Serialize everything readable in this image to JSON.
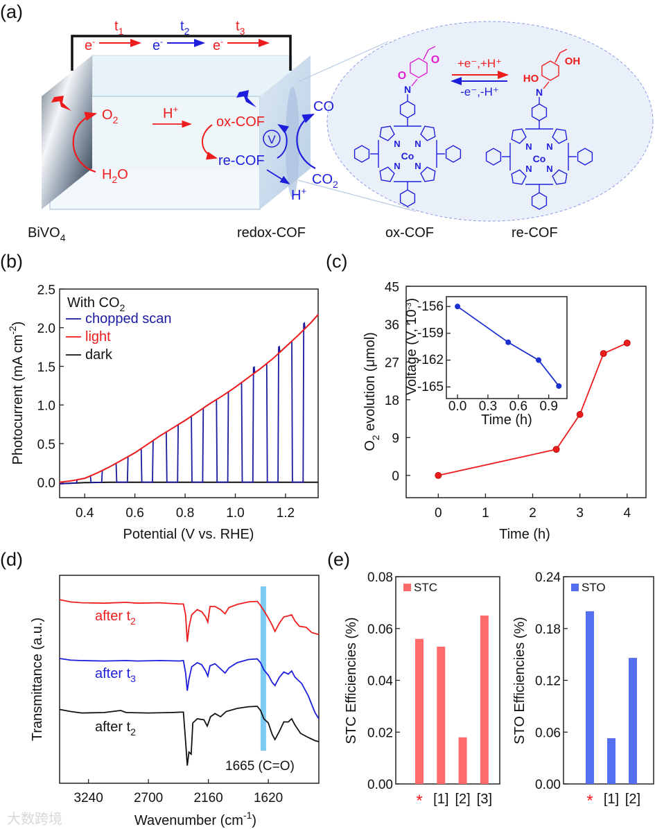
{
  "figure": {
    "panel_labels": {
      "a": "(a)",
      "b": "(b)",
      "c": "(c)",
      "d": "(d)",
      "e": "(e)"
    },
    "watermark": "大数跨境",
    "schematic": {
      "times": [
        {
          "base": "t",
          "sub": "1"
        },
        {
          "base": "t",
          "sub": "2"
        },
        {
          "base": "t",
          "sub": "3"
        }
      ],
      "electron": {
        "base": "e",
        "sup": "-"
      },
      "o2": {
        "base": "O",
        "sub": "2"
      },
      "h2o": {
        "base": "H",
        "sub": "2",
        "tail": "O"
      },
      "proton": {
        "base": "H",
        "sup": "+"
      },
      "ox_cof": "ox-COF",
      "re_cof": "re-COF",
      "voltage_symbol": "V",
      "co": "CO",
      "co2": {
        "base": "CO",
        "sub": "2"
      },
      "bivo4": {
        "base": "BiVO",
        "sub": "4"
      },
      "redox_cof": "redox-COF",
      "forward": "+e⁻,+H⁺",
      "backward": "-e⁻,-H⁺",
      "atoms": {
        "N": "N",
        "Co": "Co",
        "O": "O",
        "HO": "HO",
        "OH": "OH"
      },
      "structure_labels": {
        "ox": "ox-COF",
        "re": "re-COF"
      },
      "colors": {
        "red": "#ee1c1c",
        "blue": "#1d1ddc",
        "magenta": "#e01ed0"
      }
    }
  },
  "chart_data": [
    {
      "id": "b",
      "type": "line",
      "title": "",
      "xlabel": "Potential (V vs. RHE)",
      "ylabel": {
        "base": "Photocurrent (mA cm",
        "sup": "-2",
        "tail": ")"
      },
      "xlim": [
        0.3,
        1.33
      ],
      "ylim": [
        -0.2,
        2.5
      ],
      "xticks": [
        0.4,
        0.6,
        0.8,
        1.0,
        1.2
      ],
      "xtick_labels": [
        "0.4",
        "0.6",
        "0.8",
        "1.0",
        "1.2"
      ],
      "yticks": [
        0.0,
        0.5,
        1.0,
        1.5,
        2.0,
        2.5
      ],
      "ytick_labels": [
        "0.0",
        "0.5",
        "1.0",
        "1.5",
        "2.0",
        "2.5"
      ],
      "legend_title": {
        "base": "With CO",
        "sub": "2"
      },
      "legend_position": "top-left",
      "series": [
        {
          "name": "chopped scan",
          "color": "#1a1aa0",
          "on_windows": [
            [
              0.37,
              0.425
            ],
            [
              0.47,
              0.527
            ],
            [
              0.57,
              0.627
            ],
            [
              0.67,
              0.727
            ],
            [
              0.77,
              0.827
            ],
            [
              0.87,
              0.927
            ],
            [
              0.97,
              1.027
            ],
            [
              1.07,
              1.127
            ],
            [
              1.17,
              1.227
            ],
            [
              1.27,
              1.33
            ]
          ]
        },
        {
          "name": "light",
          "color": "#ee1c1c",
          "points": [
            [
              0.3,
              0.0
            ],
            [
              0.35,
              0.02
            ],
            [
              0.4,
              0.05
            ],
            [
              0.45,
              0.12
            ],
            [
              0.5,
              0.2
            ],
            [
              0.55,
              0.29
            ],
            [
              0.6,
              0.38
            ],
            [
              0.65,
              0.49
            ],
            [
              0.7,
              0.6
            ],
            [
              0.75,
              0.7
            ],
            [
              0.8,
              0.8
            ],
            [
              0.85,
              0.91
            ],
            [
              0.9,
              1.02
            ],
            [
              0.95,
              1.12
            ],
            [
              1.0,
              1.23
            ],
            [
              1.05,
              1.35
            ],
            [
              1.1,
              1.47
            ],
            [
              1.15,
              1.6
            ],
            [
              1.2,
              1.75
            ],
            [
              1.25,
              1.9
            ],
            [
              1.3,
              2.06
            ],
            [
              1.33,
              2.17
            ]
          ]
        },
        {
          "name": "dark",
          "color": "#111111",
          "points": [
            [
              0.3,
              -0.02
            ],
            [
              0.4,
              -0.005
            ],
            [
              0.5,
              0.0
            ],
            [
              1.33,
              0.0
            ]
          ]
        }
      ]
    },
    {
      "id": "c",
      "type": "line",
      "xlabel": "Time (h)",
      "ylabel": {
        "base": "O",
        "sub": "2",
        "tail": " evolution (μmol)"
      },
      "xlim": [
        -0.68,
        4.4
      ],
      "ylim": [
        -5.3,
        45
      ],
      "xticks": [
        0,
        1,
        2,
        3,
        4
      ],
      "xtick_labels": [
        "0",
        "1",
        "2",
        "3",
        "4"
      ],
      "yticks": [
        0,
        9,
        18,
        27,
        36,
        45
      ],
      "ytick_labels": [
        "0",
        "9",
        "18",
        "27",
        "36",
        "45"
      ],
      "series": [
        {
          "name": "O2 evolution",
          "color": "#ee1c1c",
          "x": [
            0,
            2.5,
            3.0,
            3.5,
            4.0
          ],
          "y": [
            0,
            6.2,
            14.5,
            29.0,
            31.5
          ]
        }
      ],
      "inset": {
        "type": "line",
        "xlabel": "Time (h)",
        "ylabel": {
          "base": "Voltage (V, 10",
          "sup": "-3",
          "tail": ")"
        },
        "xlim": [
          -0.11,
          1.08
        ],
        "ylim": [
          -166.3,
          -154.9
        ],
        "xticks": [
          0.0,
          0.3,
          0.6,
          0.9
        ],
        "xtick_labels": [
          "0.0",
          "0.3",
          "0.6",
          "0.9"
        ],
        "yticks": [
          -156,
          -159,
          -162,
          -165
        ],
        "ytick_labels": [
          "-156",
          "-159",
          "-162",
          "-165"
        ],
        "series": [
          {
            "name": "Voltage",
            "color": "#1a2fd0",
            "x": [
              0.0,
              0.5,
              0.8,
              1.0
            ],
            "y": [
              -156.0,
              -160.0,
              -162.0,
              -164.9
            ]
          }
        ]
      }
    },
    {
      "id": "d",
      "type": "line",
      "xlabel": {
        "base": "Wavenumber (cm",
        "sup": "-1",
        "tail": ")"
      },
      "ylabel": "Transmittance (a.u.)",
      "xlim": [
        3500,
        1165
      ],
      "ylim": [
        0,
        10
      ],
      "xticks": [
        3240,
        2700,
        2160,
        1620
      ],
      "xtick_labels": [
        "3240",
        "2700",
        "2160",
        "1620"
      ],
      "highlight": {
        "wavenumber": 1665,
        "label": "1665 (C=O)",
        "color": "#7ecbf2"
      },
      "series": [
        {
          "name": "after t2",
          "label": {
            "base": "after t",
            "sub": "2"
          },
          "color": "#ee1c1c",
          "points": [
            [
              3500,
              8.83
            ],
            [
              3400,
              8.72
            ],
            [
              3300,
              8.68
            ],
            [
              3100,
              8.66
            ],
            [
              2900,
              8.7
            ],
            [
              2800,
              8.66
            ],
            [
              2600,
              8.68
            ],
            [
              2420,
              8.62
            ],
            [
              2385,
              8.62
            ],
            [
              2365,
              8.1
            ],
            [
              2350,
              6.8
            ],
            [
              2335,
              7.5
            ],
            [
              2310,
              8.1
            ],
            [
              2260,
              8.35
            ],
            [
              2220,
              8.25
            ],
            [
              2185,
              8.0
            ],
            [
              2165,
              7.75
            ],
            [
              2145,
              8.5
            ],
            [
              2100,
              8.5
            ],
            [
              2050,
              8.35
            ],
            [
              2010,
              8.15
            ],
            [
              1975,
              8.45
            ],
            [
              1900,
              8.6
            ],
            [
              1800,
              8.72
            ],
            [
              1720,
              8.75
            ],
            [
              1690,
              8.55
            ],
            [
              1660,
              8.3
            ],
            [
              1620,
              7.95
            ],
            [
              1585,
              7.6
            ],
            [
              1560,
              7.3
            ],
            [
              1520,
              7.7
            ],
            [
              1480,
              8.0
            ],
            [
              1440,
              8.05
            ],
            [
              1410,
              8.1
            ],
            [
              1380,
              7.8
            ],
            [
              1340,
              7.55
            ],
            [
              1280,
              7.5
            ],
            [
              1230,
              7.25
            ],
            [
              1165,
              7.15
            ]
          ]
        },
        {
          "name": "after t3",
          "label": {
            "base": "after t",
            "sub": "3"
          },
          "color": "#1d1ddc",
          "points": [
            [
              3500,
              6.0
            ],
            [
              3400,
              5.92
            ],
            [
              3300,
              5.9
            ],
            [
              3100,
              5.88
            ],
            [
              2900,
              5.9
            ],
            [
              2800,
              5.88
            ],
            [
              2600,
              5.9
            ],
            [
              2420,
              5.88
            ],
            [
              2385,
              5.9
            ],
            [
              2365,
              5.3
            ],
            [
              2350,
              4.45
            ],
            [
              2335,
              5.0
            ],
            [
              2310,
              5.6
            ],
            [
              2260,
              5.8
            ],
            [
              2220,
              5.7
            ],
            [
              2185,
              5.4
            ],
            [
              2165,
              5.15
            ],
            [
              2145,
              5.65
            ],
            [
              2100,
              5.75
            ],
            [
              2050,
              5.5
            ],
            [
              2010,
              5.3
            ],
            [
              1975,
              5.55
            ],
            [
              1900,
              5.8
            ],
            [
              1800,
              5.95
            ],
            [
              1720,
              5.98
            ],
            [
              1690,
              5.8
            ],
            [
              1660,
              5.45
            ],
            [
              1620,
              5.2
            ],
            [
              1585,
              4.85
            ],
            [
              1560,
              4.7
            ],
            [
              1520,
              5.1
            ],
            [
              1480,
              5.35
            ],
            [
              1440,
              5.25
            ],
            [
              1410,
              5.4
            ],
            [
              1380,
              5.1
            ],
            [
              1320,
              4.8
            ],
            [
              1260,
              4.2
            ],
            [
              1200,
              3.4
            ],
            [
              1165,
              3.1
            ]
          ]
        },
        {
          "name": "after t2 (bottom)",
          "label": {
            "base": "after t",
            "sub": "2"
          },
          "color": "#111111",
          "points": [
            [
              3500,
              3.55
            ],
            [
              3400,
              3.45
            ],
            [
              3300,
              3.38
            ],
            [
              3100,
              3.4
            ],
            [
              2950,
              3.5
            ],
            [
              2900,
              3.4
            ],
            [
              2700,
              3.38
            ],
            [
              2500,
              3.4
            ],
            [
              2400,
              3.42
            ],
            [
              2385,
              3.42
            ],
            [
              2365,
              2.0
            ],
            [
              2350,
              0.85
            ],
            [
              2335,
              1.5
            ],
            [
              2315,
              1.4
            ],
            [
              2300,
              2.9
            ],
            [
              2260,
              3.1
            ],
            [
              2200,
              3.05
            ],
            [
              2170,
              2.75
            ],
            [
              2140,
              3.2
            ],
            [
              2100,
              3.35
            ],
            [
              2050,
              3.2
            ],
            [
              2000,
              3.45
            ],
            [
              1900,
              3.6
            ],
            [
              1800,
              3.68
            ],
            [
              1720,
              3.7
            ],
            [
              1690,
              3.5
            ],
            [
              1660,
              3.1
            ],
            [
              1620,
              2.9
            ],
            [
              1585,
              2.35
            ],
            [
              1560,
              2.1
            ],
            [
              1520,
              2.5
            ],
            [
              1480,
              2.95
            ],
            [
              1440,
              2.95
            ],
            [
              1410,
              3.1
            ],
            [
              1380,
              2.8
            ],
            [
              1330,
              2.4
            ],
            [
              1260,
              2.2
            ],
            [
              1200,
              2.05
            ],
            [
              1165,
              2.0
            ]
          ]
        }
      ]
    },
    {
      "id": "e1",
      "type": "bar",
      "ylabel": "STC Efficiencies (%)",
      "categories": [
        "*",
        "[1]",
        "[2]",
        "[3]"
      ],
      "values": [
        0.056,
        0.053,
        0.018,
        0.065
      ],
      "ylim": [
        0,
        0.08
      ],
      "yticks": [
        0.0,
        0.02,
        0.04,
        0.06,
        0.08
      ],
      "ytick_labels": [
        "0.00",
        "0.02",
        "0.04",
        "0.06",
        "0.08"
      ],
      "legend": "STC",
      "legend_position": "top-left",
      "color": "#ff6b6b",
      "star_color": "#ee1c1c"
    },
    {
      "id": "e2",
      "type": "bar",
      "ylabel": "STO Efficiencies (%)",
      "categories": [
        "*",
        "[1]",
        "[2]"
      ],
      "values": [
        0.2,
        0.053,
        0.146
      ],
      "ylim": [
        0,
        0.24
      ],
      "yticks": [
        0.0,
        0.06,
        0.12,
        0.18,
        0.24
      ],
      "ytick_labels": [
        "0.00",
        "0.06",
        "0.12",
        "0.18",
        "0.24"
      ],
      "legend": "STO",
      "legend_position": "top-left",
      "color": "#5470f0",
      "star_color": "#ee1c1c"
    }
  ]
}
